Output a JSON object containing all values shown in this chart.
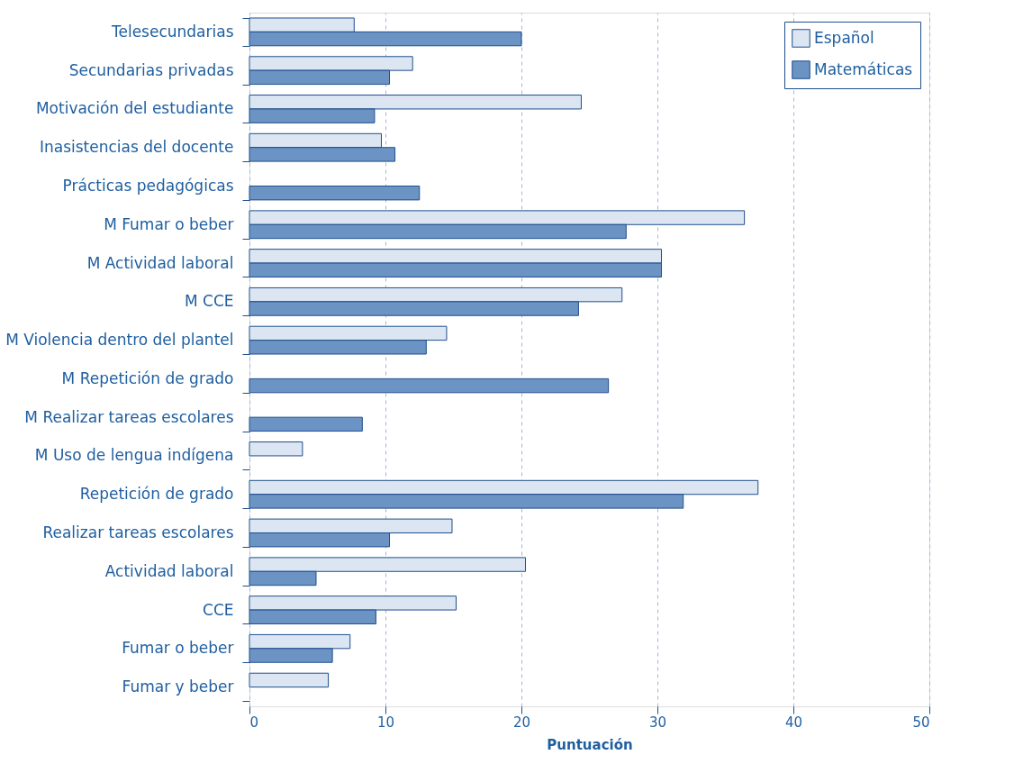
{
  "chart_data": {
    "type": "bar",
    "orientation": "horizontal",
    "xlabel": "Puntuación",
    "categories": [
      "Telesecundarias",
      "Secundarias privadas",
      "Motivación del estudiante",
      "Inasistencias del docente",
      "Prácticas pedagógicas",
      "M Fumar o beber",
      "M Actividad laboral",
      "M CCE",
      "M Violencia dentro del plantel",
      "M Repetición de grado",
      "M Realizar tareas escolares",
      "M Uso de lengua indígena",
      "Repetición de grado",
      "Realizar tareas escolares",
      "Actividad laboral",
      "CCE",
      "Fumar o beber",
      "Fumar y beber"
    ],
    "series": [
      {
        "name": "Español",
        "color": "#dce6f2",
        "values": [
          7.7,
          12.0,
          24.4,
          9.7,
          null,
          36.4,
          30.3,
          27.4,
          14.5,
          null,
          null,
          3.9,
          37.4,
          14.9,
          20.3,
          15.2,
          7.4,
          5.8
        ]
      },
      {
        "name": "Matemáticas",
        "color": "#6b93c4",
        "values": [
          20.0,
          10.3,
          9.2,
          10.7,
          12.5,
          27.7,
          30.3,
          24.2,
          13.0,
          26.4,
          8.3,
          null,
          31.9,
          10.3,
          4.9,
          9.3,
          6.1,
          null
        ]
      }
    ],
    "xlim": [
      0,
      50
    ],
    "xticks": [
      0,
      10,
      20,
      30,
      40,
      50
    ],
    "grid": "x",
    "legend": "top right"
  }
}
